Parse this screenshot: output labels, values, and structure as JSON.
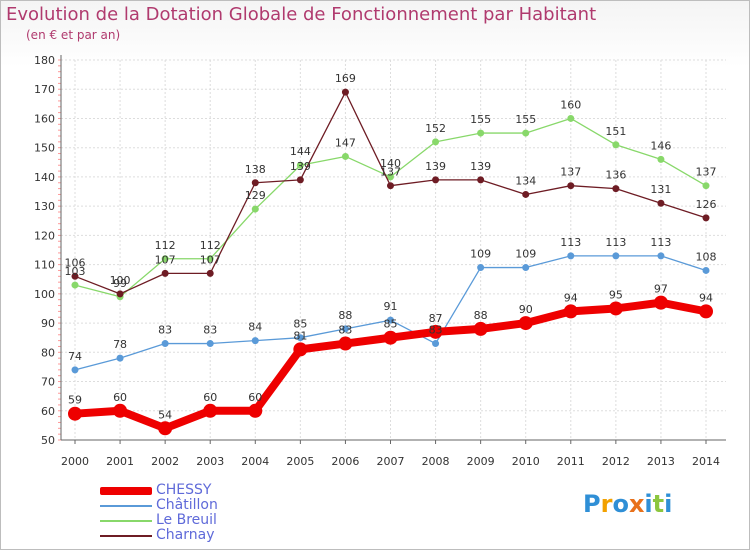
{
  "title": "Evolution de la Dotation Globale de Fonctionnement par Habitant",
  "subtitle": "(en € et par an)",
  "logo": {
    "chars": [
      "P",
      "r",
      "o",
      "x",
      "i",
      "t",
      "i"
    ],
    "colors": [
      "#2f8fd6",
      "#f2a100",
      "#2f8fd6",
      "#e8711b",
      "#2f8fd6",
      "#8cc63e",
      "#2f8fd6"
    ]
  },
  "chart_data": {
    "type": "line",
    "title": "Evolution de la Dotation Globale de Fonctionnement par Habitant",
    "ylabel": "(en € et par an)",
    "xlabel": "",
    "ylim": [
      50,
      180
    ],
    "yticks": [
      "50",
      "60",
      "70",
      "80",
      "90",
      "100",
      "110",
      "120",
      "130",
      "140",
      "150",
      "160",
      "170",
      "180"
    ],
    "categories": [
      "2000",
      "2001",
      "2002",
      "2003",
      "2004",
      "2005",
      "2006",
      "2007",
      "2008",
      "2009",
      "2010",
      "2011",
      "2012",
      "2013",
      "2014"
    ],
    "grid": true,
    "series": [
      {
        "name": "CHESSY",
        "color": "#ee0000",
        "values": [
          59,
          60,
          54,
          60,
          60,
          81,
          83,
          85,
          87,
          88,
          90,
          94,
          95,
          97,
          94
        ]
      },
      {
        "name": "Châtillon",
        "color": "#5a9ad8",
        "values": [
          74,
          78,
          83,
          83,
          84,
          85,
          88,
          91,
          83,
          109,
          109,
          113,
          113,
          113,
          108
        ]
      },
      {
        "name": "Le Breuil",
        "color": "#88d86a",
        "values": [
          103,
          99,
          112,
          112,
          129,
          144,
          147,
          140,
          152,
          155,
          155,
          160,
          151,
          146,
          137
        ]
      },
      {
        "name": "Charnay",
        "color": "#6e1c24",
        "values": [
          106,
          100,
          107,
          107,
          138,
          139,
          169,
          137,
          139,
          139,
          134,
          137,
          136,
          131,
          126
        ]
      }
    ]
  }
}
